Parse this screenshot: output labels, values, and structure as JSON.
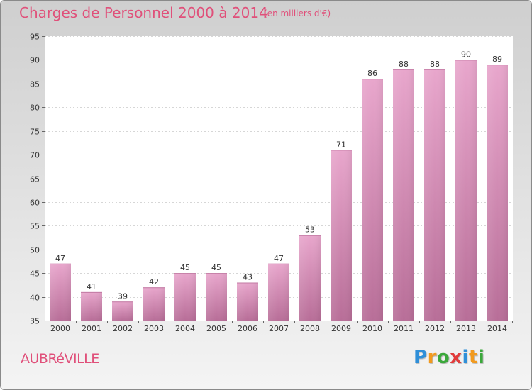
{
  "header": {
    "title": "Charges de Personnel 2000 à 2014",
    "subtitle": "(en milliers d'€)"
  },
  "footer": {
    "city": "AUBRéVILLE",
    "logo_letters": [
      "P",
      "r",
      "o",
      "x",
      "i",
      "t",
      "i"
    ],
    "logo_colors": [
      "#2f8fd8",
      "#f29a1e",
      "#3aa83a",
      "#e23b3b",
      "#2f8fd8",
      "#f29a1e",
      "#3aa83a"
    ]
  },
  "chart_data": {
    "type": "bar",
    "title": "Charges de Personnel 2000 à 2014",
    "subtitle": "(en milliers d'€)",
    "categories": [
      "2000",
      "2001",
      "2002",
      "2003",
      "2004",
      "2005",
      "2006",
      "2007",
      "2008",
      "2009",
      "2010",
      "2011",
      "2012",
      "2013",
      "2014"
    ],
    "values": [
      47,
      41,
      39,
      42,
      45,
      45,
      43,
      47,
      53,
      71,
      86,
      88,
      88,
      90,
      89
    ],
    "ylim": [
      35,
      95
    ],
    "yticks": [
      35,
      40,
      45,
      50,
      55,
      60,
      65,
      70,
      75,
      80,
      85,
      90,
      95
    ],
    "grid": true,
    "bar_color_top": "#e8a6cc",
    "bar_color_bottom": "#b86e98"
  }
}
